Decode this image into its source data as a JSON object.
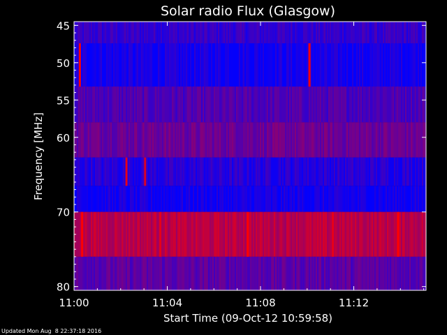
{
  "chart_data": {
    "type": "heatmap",
    "title": "Solar radio Flux (Glasgow)",
    "xlabel": "Start Time (09-Oct-12 10:59:58)",
    "ylabel": "Frequency [MHz]",
    "x_unit": "minutes after 11:00",
    "xlim": [
      0,
      15.1
    ],
    "ylim": [
      44.5,
      80.5
    ],
    "y_reversed": true,
    "x_ticks": [
      {
        "value": 0,
        "label": "11:00"
      },
      {
        "value": 4,
        "label": "11:04"
      },
      {
        "value": 8,
        "label": "11:08"
      },
      {
        "value": 12,
        "label": "11:12"
      }
    ],
    "y_ticks": [
      {
        "value": 45,
        "label": "45"
      },
      {
        "value": 50,
        "label": "50"
      },
      {
        "value": 55,
        "label": "55"
      },
      {
        "value": 60,
        "label": "60"
      },
      {
        "value": 70,
        "label": "70"
      },
      {
        "value": 80,
        "label": "80"
      }
    ],
    "bands": [
      {
        "f_from": 44.5,
        "f_to": 47.4,
        "intensity": 0.2
      },
      {
        "f_from": 47.4,
        "f_to": 53.2,
        "intensity": 0.08
      },
      {
        "f_from": 53.2,
        "f_to": 58.0,
        "intensity": 0.3
      },
      {
        "f_from": 58.0,
        "f_to": 62.7,
        "intensity": 0.42
      },
      {
        "f_from": 62.7,
        "f_to": 66.5,
        "intensity": 0.15
      },
      {
        "f_from": 66.5,
        "f_to": 70.0,
        "intensity": 0.07
      },
      {
        "f_from": 70.0,
        "f_to": 76.0,
        "intensity": 0.72
      },
      {
        "f_from": 76.0,
        "f_to": 80.5,
        "intensity": 0.35
      }
    ],
    "bursts": [
      {
        "t": 0.25,
        "f_from": 47.4,
        "f_to": 53.2,
        "intensity": 1.0
      },
      {
        "t": 10.1,
        "f_from": 47.4,
        "f_to": 53.2,
        "intensity": 1.0
      },
      {
        "t": 2.25,
        "f_from": 62.7,
        "f_to": 66.5,
        "intensity": 0.9
      },
      {
        "t": 3.05,
        "f_from": 62.7,
        "f_to": 66.5,
        "intensity": 0.85
      },
      {
        "t": 0.35,
        "f_from": 70.0,
        "f_to": 76.0,
        "intensity": 1.0
      },
      {
        "t": 7.45,
        "f_from": 70.0,
        "f_to": 76.0,
        "intensity": 1.0
      },
      {
        "t": 13.9,
        "f_from": 70.0,
        "f_to": 76.0,
        "intensity": 1.0
      },
      {
        "t": 3.7,
        "f_from": 70.0,
        "f_to": 76.0,
        "intensity": 0.9
      },
      {
        "t": 11.1,
        "f_from": 70.0,
        "f_to": 76.0,
        "intensity": 0.9
      }
    ],
    "colormap": [
      "#0000ff",
      "#ff0000"
    ],
    "grid": false,
    "legend": "none"
  },
  "footer": {
    "updated": "Updated Mon Aug  8 22:37:18 2016"
  }
}
